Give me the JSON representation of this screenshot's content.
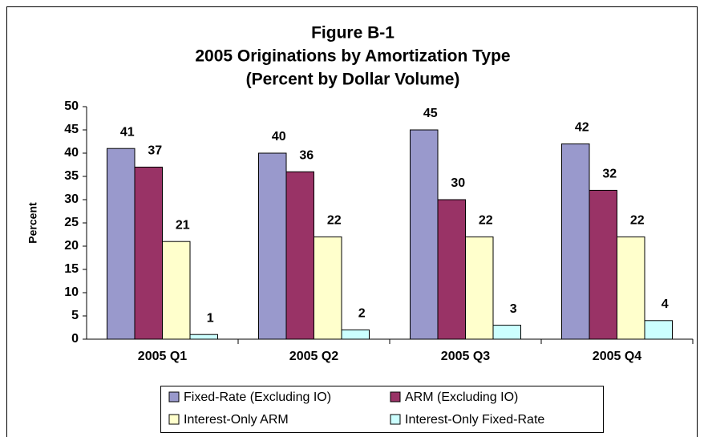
{
  "chart_data": {
    "type": "bar",
    "title": [
      "Figure B-1",
      "2005 Originations by Amortization Type",
      "(Percent by Dollar Volume)"
    ],
    "y_label": "Percent",
    "categories": [
      "2005 Q1",
      "2005 Q2",
      "2005 Q3",
      "2005 Q4"
    ],
    "series": [
      {
        "name": "Fixed-Rate (Excluding IO)",
        "color": "#9999cc",
        "values": [
          41,
          40,
          45,
          42
        ]
      },
      {
        "name": "ARM (Excluding IO)",
        "color": "#993366",
        "values": [
          37,
          36,
          30,
          32
        ]
      },
      {
        "name": "Interest-Only ARM",
        "color": "#ffffcc",
        "values": [
          21,
          22,
          22,
          22
        ]
      },
      {
        "name": "Interest-Only Fixed-Rate",
        "color": "#ccffff",
        "values": [
          1,
          2,
          3,
          4
        ]
      }
    ],
    "ylim": [
      0,
      50
    ],
    "yticks": [
      0,
      5,
      10,
      15,
      20,
      25,
      30,
      35,
      40,
      45,
      50
    ],
    "legend": "bottom",
    "data_labels": true
  }
}
